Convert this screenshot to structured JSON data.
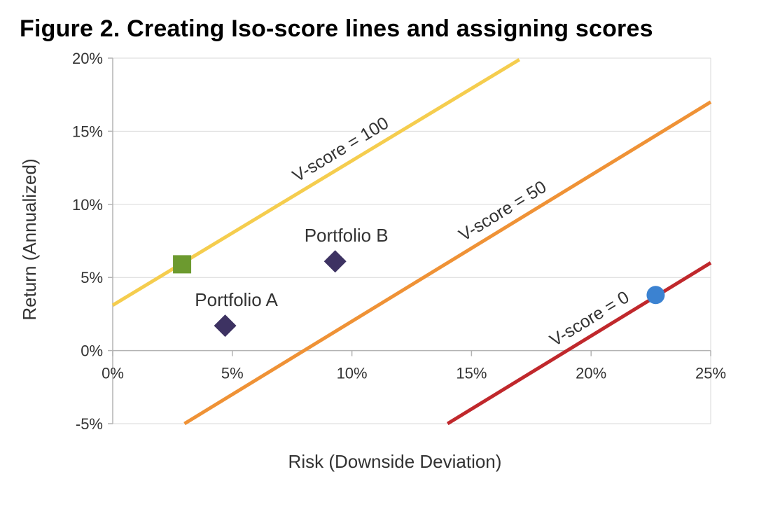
{
  "chart_data": {
    "type": "scatter",
    "title": "Figure 2. Creating Iso-score lines and assigning scores",
    "xlabel": "Risk (Downside Deviation)",
    "ylabel": "Return (Annualized)",
    "xlim": [
      0,
      25
    ],
    "ylim": [
      -5,
      20
    ],
    "x_ticks": [
      0,
      5,
      10,
      15,
      20,
      25
    ],
    "y_ticks": [
      -5,
      0,
      5,
      10,
      15,
      20
    ],
    "x_tick_labels": [
      "0%",
      "5%",
      "10%",
      "15%",
      "20%",
      "25%"
    ],
    "y_tick_labels": [
      "-5%",
      "0%",
      "5%",
      "10%",
      "15%",
      "20%"
    ],
    "grid": "horizontal",
    "legend": "none",
    "lines": [
      {
        "label": "V-score = 100",
        "color": "#f5cd4e",
        "x": [
          0,
          17
        ],
        "y": [
          3.1,
          19.9
        ]
      },
      {
        "label": "V-score = 50",
        "color": "#ef9236",
        "x": [
          3,
          25
        ],
        "y": [
          -5,
          17
        ]
      },
      {
        "label": "V-score = 0",
        "color": "#c0282c",
        "x": [
          14,
          25
        ],
        "y": [
          -5,
          6
        ]
      }
    ],
    "points": [
      {
        "label": "",
        "shape": "square",
        "color": "#6c9a2f",
        "x": 2.9,
        "y": 5.9
      },
      {
        "label": "Portfolio A",
        "shape": "diamond",
        "color": "#3d3262",
        "x": 4.7,
        "y": 1.7
      },
      {
        "label": "Portfolio B",
        "shape": "diamond",
        "color": "#3d3262",
        "x": 9.3,
        "y": 6.1
      },
      {
        "label": "",
        "shape": "circle",
        "color": "#3b82d1",
        "x": 22.7,
        "y": 3.8
      }
    ]
  }
}
